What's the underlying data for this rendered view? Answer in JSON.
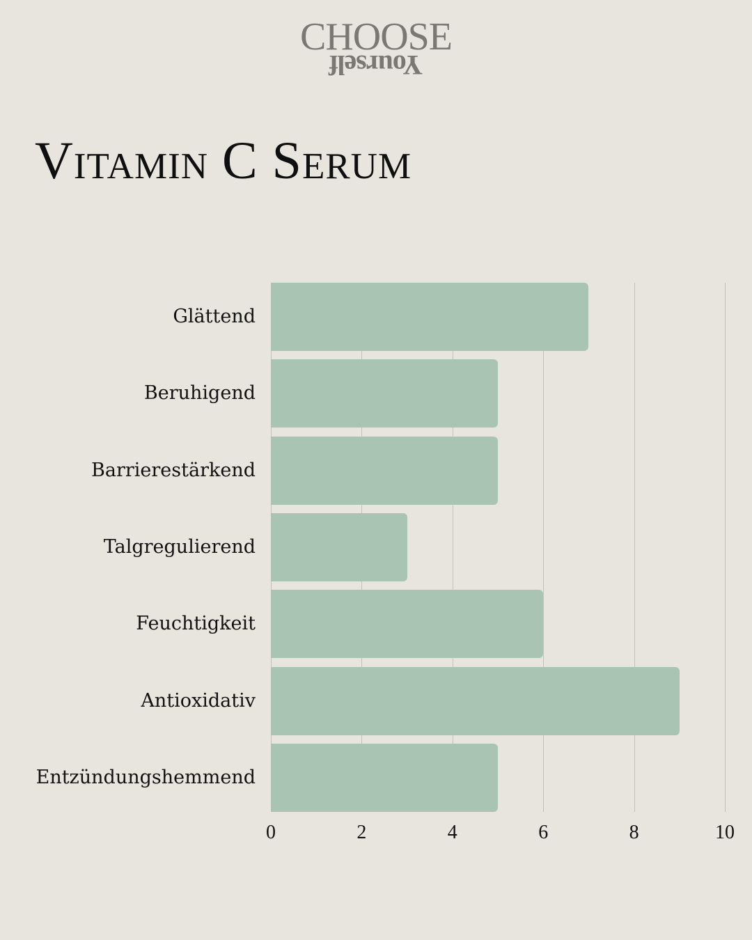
{
  "logo": {
    "top": "CHOOSE",
    "bottom": "Yourself"
  },
  "colors": {
    "background": "#e8e5df",
    "bar": "#a9c4b3",
    "grid": "#c4c1bb",
    "text": "#111111",
    "logo": "#7b7874"
  },
  "chart_data": {
    "type": "bar",
    "orientation": "horizontal",
    "title": "Vitamin C Serum",
    "categories": [
      "Glättend",
      "Beruhigend",
      "Barrierestärkend",
      "Talgregulierend",
      "Feuchtigkeit",
      "Antioxidativ",
      "Entzündungshemmend"
    ],
    "values": [
      7,
      5,
      5,
      3,
      6,
      9,
      5
    ],
    "xlabel": "",
    "ylabel": "",
    "xlim": [
      0,
      10
    ],
    "xticks": [
      "0",
      "2",
      "4",
      "6",
      "8",
      "10"
    ],
    "grid": true,
    "legend": null
  }
}
